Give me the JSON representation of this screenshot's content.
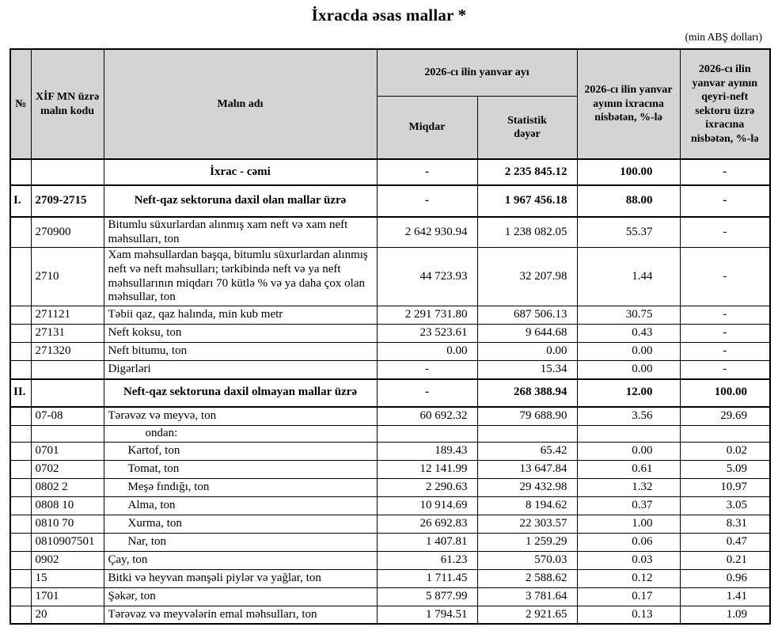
{
  "page": {
    "title": "İxracda əsas mallar *",
    "unit_note": "(min ABŞ dolları)"
  },
  "table": {
    "headers": {
      "no": "№",
      "code": "XİF MN üzrə malın kodu",
      "name": "Malın adı",
      "period_group": "2026-cı ilin yanvar ayı",
      "quantity": "Miqdar",
      "stat_value": "Statistik dəyər",
      "share_total": "2026-cı ilin yanvar ayının ixracına nisbətən, %-lə",
      "share_nonoil": "2026-cı ilin yanvar ayının qeyri-neft sektoru üzrə ixracına nisbətən, %-lə"
    },
    "rows": [
      {
        "no": "",
        "code": "",
        "name": "İxrac - cəmi",
        "qty": "-",
        "value": "2 235 845.12",
        "share_total": "100.00",
        "share_nonoil": "-",
        "kind": "total",
        "indent": 0
      },
      {
        "no": "I.",
        "code": "2709-2715",
        "name": "Neft-qaz sektoruna daxil olan mallar üzrə",
        "qty": "-",
        "value": "1 967 456.18",
        "share_total": "88.00",
        "share_nonoil": "-",
        "kind": "section",
        "indent": 0
      },
      {
        "no": "",
        "code": "270900",
        "name": "Bitumlu süxurlardan alınmış xam neft və xam neft məhsulları, ton",
        "qty": "2 642 930.94",
        "value": "1 238 082.05",
        "share_total": "55.37",
        "share_nonoil": "-",
        "kind": "item",
        "indent": 0
      },
      {
        "no": "",
        "code": "2710",
        "name": "Xam məhsullardan başqa, bitumlu süxurlardan alınmış neft və neft məhsulları; tərkibində neft və ya neft məhsullarının miqdarı 70 kütlə % və ya daha çox olan məhsullar, ton",
        "qty": "44 723.93",
        "value": "32 207.98",
        "share_total": "1.44",
        "share_nonoil": "-",
        "kind": "item",
        "indent": 0
      },
      {
        "no": "",
        "code": "271121",
        "name": "Təbii qaz, qaz halında, min kub metr",
        "qty": "2 291 731.80",
        "value": "687 506.13",
        "share_total": "30.75",
        "share_nonoil": "-",
        "kind": "item",
        "indent": 0
      },
      {
        "no": "",
        "code": "27131",
        "name": "Neft koksu, ton",
        "qty": "23 523.61",
        "value": "9 644.68",
        "share_total": "0.43",
        "share_nonoil": "-",
        "kind": "item",
        "indent": 0
      },
      {
        "no": "",
        "code": "271320",
        "name": "Neft bitumu, ton",
        "qty": "0.00",
        "value": "0.00",
        "share_total": "0.00",
        "share_nonoil": "-",
        "kind": "item",
        "indent": 0
      },
      {
        "no": "",
        "code": "",
        "name": "Digərləri",
        "qty": "-",
        "value": "15.34",
        "share_total": "0.00",
        "share_nonoil": "-",
        "kind": "item",
        "indent": 0
      },
      {
        "no": "II.",
        "code": "",
        "name": "Neft-qaz sektoruna daxil olmayan mallar üzrə",
        "qty": "-",
        "value": "268 388.94",
        "share_total": "12.00",
        "share_nonoil": "100.00",
        "kind": "section",
        "indent": 0
      },
      {
        "no": "",
        "code": "07-08",
        "name": "Tərəvəz və meyvə, ton",
        "qty": "60 692.32",
        "value": "79 688.90",
        "share_total": "3.56",
        "share_nonoil": "29.69",
        "kind": "item",
        "indent": 0
      },
      {
        "no": "",
        "code": "",
        "name": "ondan:",
        "qty": "",
        "value": "",
        "share_total": "",
        "share_nonoil": "",
        "kind": "label",
        "indent": 2
      },
      {
        "no": "",
        "code": "0701",
        "name": "Kartof, ton",
        "qty": "189.43",
        "value": "65.42",
        "share_total": "0.00",
        "share_nonoil": "0.02",
        "kind": "item",
        "indent": 1
      },
      {
        "no": "",
        "code": "0702",
        "name": "Tomat, ton",
        "qty": "12 141.99",
        "value": "13 647.84",
        "share_total": "0.61",
        "share_nonoil": "5.09",
        "kind": "item",
        "indent": 1
      },
      {
        "no": "",
        "code": "0802 2",
        "name": "Meşə fındığı, ton",
        "qty": "2 290.63",
        "value": "29 432.98",
        "share_total": "1.32",
        "share_nonoil": "10.97",
        "kind": "item",
        "indent": 1
      },
      {
        "no": "",
        "code": "0808 10",
        "name": "Alma, ton",
        "qty": "10 914.69",
        "value": "8 194.62",
        "share_total": "0.37",
        "share_nonoil": "3.05",
        "kind": "item",
        "indent": 1
      },
      {
        "no": "",
        "code": "0810 70",
        "name": "Xurma, ton",
        "qty": "26 692.83",
        "value": "22 303.57",
        "share_total": "1.00",
        "share_nonoil": "8.31",
        "kind": "item",
        "indent": 1
      },
      {
        "no": "",
        "code": "0810907501",
        "name": "Nar, ton",
        "qty": "1 407.81",
        "value": "1 259.29",
        "share_total": "0.06",
        "share_nonoil": "0.47",
        "kind": "item",
        "indent": 1
      },
      {
        "no": "",
        "code": "0902",
        "name": "Çay, ton",
        "qty": "61.23",
        "value": "570.03",
        "share_total": "0.03",
        "share_nonoil": "0.21",
        "kind": "item",
        "indent": 0
      },
      {
        "no": "",
        "code": "15",
        "name": "Bitki və heyvan mənşəli piylər və yağlar, ton",
        "qty": "1 711.45",
        "value": "2 588.62",
        "share_total": "0.12",
        "share_nonoil": "0.96",
        "kind": "item",
        "indent": 0
      },
      {
        "no": "",
        "code": "1701",
        "name": "Şəkər, ton",
        "qty": "5 877.99",
        "value": "3 781.64",
        "share_total": "0.17",
        "share_nonoil": "1.41",
        "kind": "item",
        "indent": 0
      },
      {
        "no": "",
        "code": "20",
        "name": "Tərəvəz və meyvələrin emal məhsulları, ton",
        "qty": "1 794.51",
        "value": "2 921.65",
        "share_total": "0.13",
        "share_nonoil": "1.09",
        "kind": "item",
        "indent": 0
      }
    ]
  }
}
